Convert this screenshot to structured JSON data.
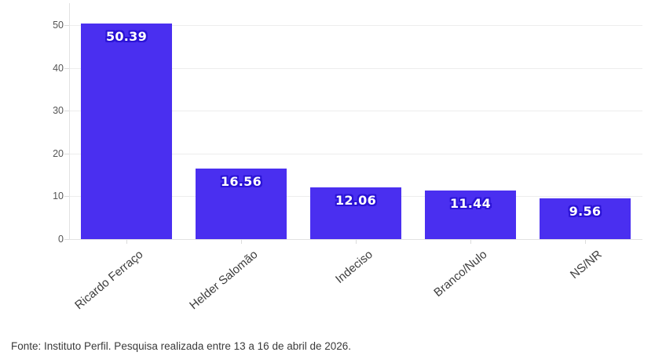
{
  "chart_data": {
    "type": "bar",
    "categories": [
      "Ricardo Ferraço",
      "Helder Salomão",
      "Indeciso",
      "Branco/Nulo",
      "NS/NR"
    ],
    "values": [
      50.39,
      16.56,
      12.06,
      11.44,
      9.56
    ],
    "value_labels": [
      "50.39",
      "16.56",
      "12.06",
      "11.44",
      "9.56"
    ],
    "title": "",
    "xlabel": "",
    "ylabel": "",
    "yticks": [
      0,
      10,
      20,
      30,
      40,
      50
    ],
    "ylim": [
      0,
      55
    ],
    "grid": true,
    "legend": "none",
    "bar_color": "#4a2ff0",
    "value_label_color": "#ffffff",
    "value_label_outline_color": "#2b13d6",
    "axis_tick_label_color": "#555555",
    "category_label_color": "#3d3d3d"
  },
  "footer": {
    "source_note": "Fonte: Instituto Perfil. Pesquisa realizada entre 13 a 16 de abril de 2026."
  }
}
